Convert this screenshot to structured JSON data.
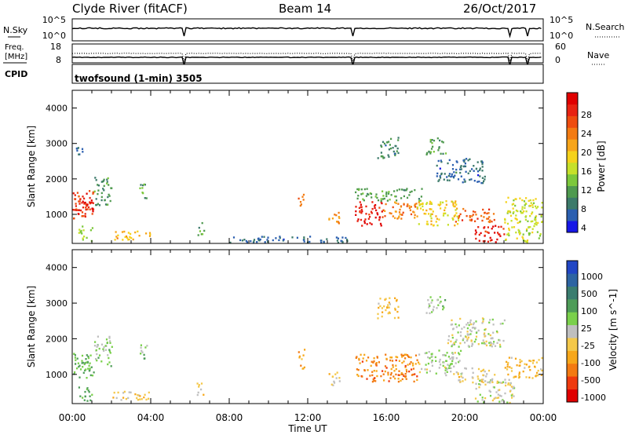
{
  "header": {
    "station": "Clyde River (fitACF)",
    "beam": "Beam 14",
    "date": "26/Oct/2017"
  },
  "status_panels": {
    "nsky_label": "N.Sky",
    "nsearch_label": "N.Search",
    "nsky_ticks": [
      "10^5",
      "10^0"
    ],
    "nsearch_ticks": [
      "10^5",
      "10^0"
    ],
    "freq_label_line1": "Freq.",
    "freq_label_line2": "[MHz]",
    "freq_ticks": [
      "18",
      "8"
    ],
    "nave_label": "Nave",
    "nave_ticks": [
      "60",
      "0"
    ],
    "cpid_label": "CPID",
    "cpid_value": "twofsound (1-min) 3505"
  },
  "axes": {
    "time_ticks": [
      "00:00",
      "04:00",
      "08:00",
      "12:00",
      "16:00",
      "20:00",
      "00:00"
    ],
    "range_ticks": [
      "1000",
      "2000",
      "3000",
      "4000"
    ],
    "xlabel": "Time UT",
    "ylabel": "Slant Range [km]"
  },
  "colors": {
    "power": [
      "#1616e6",
      "#2b5fb0",
      "#3c7a6a",
      "#4f9a4f",
      "#7cc83b",
      "#c6e02a",
      "#f5d21b",
      "#f7a51a",
      "#f37b12",
      "#ee4d0f",
      "#e82312",
      "#e00000"
    ],
    "velocity": [
      "#e00000",
      "#ef3a0e",
      "#f37a12",
      "#f7a71a",
      "#f4c84a",
      "#bfbfbf",
      "#7ad04b",
      "#4e9c58",
      "#3a7d6f",
      "#2d64a2",
      "#2146c4"
    ]
  },
  "chart_data": [
    {
      "type": "heatmap",
      "ylabel": "Slant Range [km]",
      "xlabel": "Time UT",
      "colorbar_label": "Power [dB]",
      "colorbar_ticks": [
        "28",
        "24",
        "20",
        "16",
        "12",
        "8",
        "4"
      ],
      "value_range": [
        0,
        30
      ],
      "x_range": [
        "00:00",
        "24:00"
      ],
      "ylim": [
        180,
        4500
      ],
      "patches": [
        {
          "t": [
            0.0,
            1.1
          ],
          "r": [
            900,
            1700
          ],
          "v": 25
        },
        {
          "t": [
            0.0,
            1.1
          ],
          "r": [
            1100,
            1500
          ],
          "v": 27
        },
        {
          "t": [
            1.1,
            2.0
          ],
          "r": [
            1250,
            2100
          ],
          "v": 8
        },
        {
          "t": [
            3.4,
            3.8
          ],
          "r": [
            1400,
            1900
          ],
          "v": 9
        },
        {
          "t": [
            0.0,
            0.5
          ],
          "r": [
            2700,
            3000
          ],
          "v": 5
        },
        {
          "t": [
            0.3,
            1.0
          ],
          "r": [
            260,
            700
          ],
          "v": 12
        },
        {
          "t": [
            2.0,
            4.0
          ],
          "r": [
            300,
            550
          ],
          "v": 18
        },
        {
          "t": [
            6.3,
            6.7
          ],
          "r": [
            400,
            800
          ],
          "v": 9
        },
        {
          "t": [
            11.5,
            11.8
          ],
          "r": [
            1150,
            1600
          ],
          "v": 22
        },
        {
          "t": [
            13.0,
            13.6
          ],
          "r": [
            700,
            1100
          ],
          "v": 20
        },
        {
          "t": [
            14.4,
            15.8
          ],
          "r": [
            700,
            1400
          ],
          "v": 27
        },
        {
          "t": [
            15.8,
            17.6
          ],
          "r": [
            900,
            1400
          ],
          "v": 21
        },
        {
          "t": [
            14.4,
            17.8
          ],
          "r": [
            1400,
            1750
          ],
          "v": 9
        },
        {
          "t": [
            17.5,
            19.7
          ],
          "r": [
            700,
            1400
          ],
          "v": 16
        },
        {
          "t": [
            19.5,
            21.5
          ],
          "r": [
            800,
            1200
          ],
          "v": 23
        },
        {
          "t": [
            20.5,
            22.0
          ],
          "r": [
            200,
            700
          ],
          "v": 27
        },
        {
          "t": [
            22.0,
            24.0
          ],
          "r": [
            200,
            1500
          ],
          "v": 14
        },
        {
          "t": [
            15.5,
            16.6
          ],
          "r": [
            2600,
            3200
          ],
          "v": 7
        },
        {
          "t": [
            18.0,
            19.0
          ],
          "r": [
            2700,
            3200
          ],
          "v": 9
        },
        {
          "t": [
            18.5,
            21.0
          ],
          "r": [
            1900,
            2600
          ],
          "v": 5
        },
        {
          "t": [
            8.0,
            14.0
          ],
          "r": [
            180,
            400
          ],
          "v": 5
        }
      ]
    },
    {
      "type": "heatmap",
      "ylabel": "Slant Range [km]",
      "xlabel": "Time UT",
      "colorbar_label": "Velocity [m s^-1]",
      "colorbar_ticks": [
        "1000",
        "500",
        "100",
        "25",
        "-25",
        "-100",
        "-500",
        "-1000"
      ],
      "value_range": [
        -1200,
        1200
      ],
      "x_range": [
        "00:00",
        "24:00"
      ],
      "ylim": [
        180,
        4500
      ],
      "patches": [
        {
          "t": [
            0.0,
            1.1
          ],
          "r": [
            900,
            1700
          ],
          "v": 300
        },
        {
          "t": [
            1.1,
            2.0
          ],
          "r": [
            1250,
            2100
          ],
          "v": 150
        },
        {
          "t": [
            3.4,
            3.8
          ],
          "r": [
            1400,
            1900
          ],
          "v": 200
        },
        {
          "t": [
            0.3,
            1.0
          ],
          "r": [
            260,
            700
          ],
          "v": 300
        },
        {
          "t": [
            2.0,
            4.0
          ],
          "r": [
            300,
            550
          ],
          "v": -200
        },
        {
          "t": [
            6.3,
            6.7
          ],
          "r": [
            400,
            800
          ],
          "v": -150
        },
        {
          "t": [
            11.5,
            11.8
          ],
          "r": [
            1150,
            1800
          ],
          "v": -400
        },
        {
          "t": [
            13.0,
            13.6
          ],
          "r": [
            700,
            1100
          ],
          "v": -150
        },
        {
          "t": [
            14.4,
            17.6
          ],
          "r": [
            800,
            1600
          ],
          "v": -600
        },
        {
          "t": [
            15.5,
            16.6
          ],
          "r": [
            2600,
            3200
          ],
          "v": -300
        },
        {
          "t": [
            17.6,
            19.8
          ],
          "r": [
            1000,
            1700
          ],
          "v": 80
        },
        {
          "t": [
            19.5,
            21.5
          ],
          "r": [
            800,
            1200
          ],
          "v": -150
        },
        {
          "t": [
            19.0,
            22.0
          ],
          "r": [
            1800,
            2600
          ],
          "v": 0
        },
        {
          "t": [
            20.5,
            22.5
          ],
          "r": [
            200,
            900
          ],
          "v": 0
        },
        {
          "t": [
            22.0,
            24.0
          ],
          "r": [
            900,
            1500
          ],
          "v": -300
        },
        {
          "t": [
            18.0,
            19.0
          ],
          "r": [
            2700,
            3200
          ],
          "v": 150
        }
      ]
    }
  ]
}
